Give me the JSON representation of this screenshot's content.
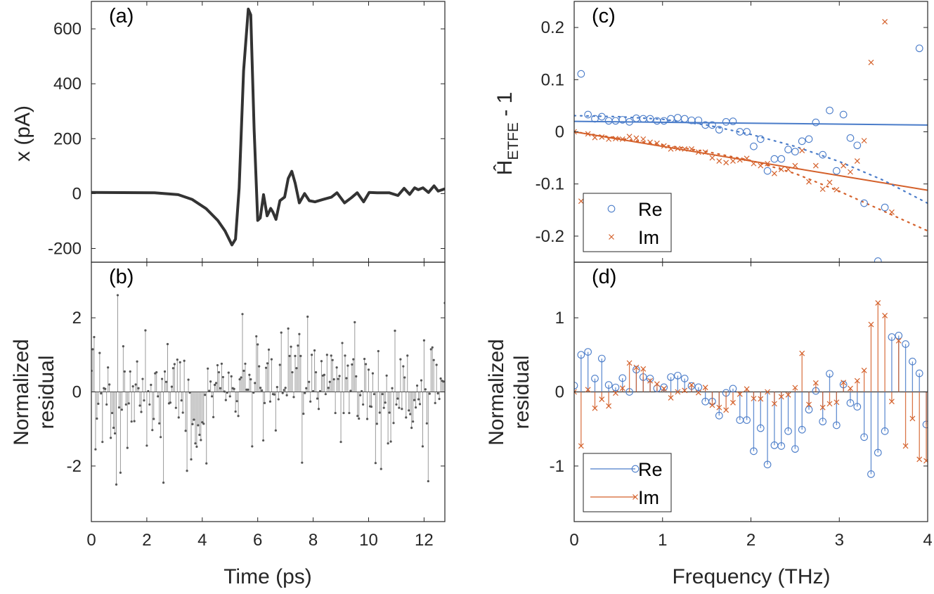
{
  "colors": {
    "re": "#4a7cc9",
    "im": "#d4602a",
    "trace": "#333333",
    "stem": "#9a9a9a",
    "axis": "#262626"
  },
  "chart_data": [
    {
      "panel_label": "(a)",
      "type": "line",
      "ylabel": "x (pA)",
      "xlim": [
        0,
        12.75
      ],
      "ylim": [
        -250,
        700
      ],
      "xticks": [
        0,
        2,
        4,
        6,
        8,
        10,
        12
      ],
      "yticks": [
        -200,
        0,
        200,
        400,
        600
      ],
      "series": [
        {
          "x": [
            0,
            2.28,
            3.13,
            3.63,
            4.14,
            4.56,
            4.82,
            5.07,
            5.2,
            5.33,
            5.49,
            5.66,
            5.75,
            5.87,
            6.0,
            6.09,
            6.21,
            6.34,
            6.47,
            6.55,
            6.66,
            6.8,
            6.97,
            7.1,
            7.23,
            7.35,
            7.5,
            7.69,
            7.86,
            8.07,
            8.37,
            8.66,
            8.86,
            9.13,
            9.38,
            9.59,
            9.82,
            10.02,
            10.31,
            10.74,
            11.06,
            11.28,
            11.48,
            11.66,
            11.79,
            11.96,
            12.16,
            12.36,
            12.51,
            12.75
          ],
          "y": [
            4,
            3,
            -4,
            -21,
            -55,
            -98,
            -136,
            -187,
            -166,
            21,
            447,
            672,
            651,
            234,
            -98,
            -89,
            -4,
            -81,
            -54,
            -68,
            -94,
            -26,
            -13,
            55,
            81,
            38,
            -34,
            0,
            -26,
            -30,
            -21,
            -13,
            3,
            -34,
            -15,
            3,
            -30,
            4,
            3,
            3,
            -7,
            19,
            -3,
            21,
            14,
            21,
            4,
            28,
            9,
            17
          ]
        }
      ]
    },
    {
      "panel_label": "(b)",
      "type": "stem",
      "xlabel": "Time (ps)",
      "ylabel": [
        "Normalized",
        "residual"
      ],
      "xlim": [
        0,
        12.75
      ],
      "ylim": [
        -3.5,
        3.5
      ],
      "xticks": [
        0,
        2,
        4,
        6,
        8,
        10,
        12
      ],
      "yticks": [
        -2,
        0,
        2
      ],
      "values": [
        0.57,
        1.15,
        1.48,
        -1.55,
        -0.72,
        -0.32,
        1.05,
        -0.04,
        -1.35,
        0.1,
        0.08,
        -0.34,
        0.66,
        0.2,
        -1.24,
        -0.57,
        -0.97,
        -1.12,
        -2.5,
        2.61,
        -0.42,
        -2.18,
        -0.48,
        1.23,
        0.55,
        -0.34,
        -1.51,
        -0.31,
        0.55,
        -0.8,
        0.15,
        -0.79,
        0.2,
        0.82,
        0.1,
        -0.37,
        -0.54,
        0.35,
        -0.23,
        1.66,
        -1.45,
        0.02,
        -0.34,
        0.19,
        -1.03,
        -0.73,
        0.5,
        0.53,
        -0.12,
        -0.85,
        -1.22,
        0.35,
        -2.45,
        0.55,
        0.27,
        1.29,
        -0.31,
        -0.29,
        0.14,
        0.64,
        0.75,
        -0.43,
        0.87,
        -0.69,
        0.8,
        -0.23,
        -0.56,
        0.84,
        -1.05,
        -2.13,
        0.33,
        -0.02,
        -1.82,
        -0.87,
        -0.75,
        -1.39,
        -1.48,
        -0.9,
        -1.16,
        -1.3,
        -0.82,
        -0.86,
        -0.08,
        -1.93,
        0.63,
        0.03,
        0.28,
        -0.12,
        -0.68,
        0.19,
        0.24,
        0.72,
        0.53,
        0.1,
        0.76,
        0.4,
        0.01,
        -0.22,
        -0.02,
        0.52,
        -0.12,
        0.42,
        0.1,
        0.08,
        -0.53,
        -0.25,
        -0.65,
        0.34,
        0.39,
        2.1,
        0.57,
        0.76,
        0.06,
        0.06,
        0.46,
        0.34,
        -1.47,
        -0.02,
        0.24,
        1.5,
        1.28,
        0.69,
        0.11,
        0.04,
        -1.31,
        -0.3,
        0.65,
        0.77,
        1.14,
        -0.26,
        0.88,
        -0.06,
        -0.07,
        -1.04,
        0.13,
        -0.2,
        0.73,
        1.6,
        -0.03,
        0.05,
        0.11,
        -0.09,
        1.71,
        0.97,
        1.22,
        0.53,
        -0.14,
        0.97,
        0.64,
        1.25,
        1.56,
        0.97,
        -1.91,
        -0.59,
        -0.03,
        0.1,
        2.03,
        0.27,
        -0.26,
        1.0,
        0.02,
        1.12,
        0.53,
        -0.18,
        -0.46,
        0.02,
        0.83,
        0.44,
        0.46,
        -0.06,
        1.0,
        0.11,
        0.27,
        0.98,
        0.86,
        0.34,
        -0.57,
        0.66,
        0.35,
        0.43,
        -1.35,
        1.32,
        -0.57,
        0.98,
        0.37,
        0.71,
        -0.57,
        0.03,
        0.74,
        0.88,
        1.88,
        0.42,
        -0.65,
        -0.72,
        -0.09,
        0.02,
        -0.34,
        0.89,
        0.75,
        -0.73,
        0.6,
        -0.39,
        -0.4,
        0.5,
        -0.06,
        -1.92,
        -0.86,
        1.1,
        -0.56,
        -2.08,
        -0.06,
        -0.43,
        -0.29,
        0.44,
        -1.39,
        -0.56,
        -1.34,
        0.1,
        -0.84,
        1.65,
        -0.34,
        -0.18,
        -0.43,
        0.88,
        -0.46,
        0.69,
        0.39,
        -0.69,
        0.98,
        -0.5,
        -0.6,
        -0.97,
        -0.8,
        -0.22,
        -0.42,
        0.17,
        -0.2,
        -0.33,
        0.31,
        -1.47,
        1.39,
        0.07,
        -0.85,
        -2.41,
        -0.05,
        1.15,
        1.2,
        0.86,
        -0.3,
        0.73,
        -0.04,
        -0.19,
        0.36,
        0.3,
        0.28,
        2.4
      ]
    },
    {
      "panel_label": "(c)",
      "type": "scatter",
      "ylabel": {
        "main": "Ĥ",
        "sub": "ETFE",
        "suffix": " - 1"
      },
      "xlim": [
        0,
        4
      ],
      "ylim": [
        -0.25,
        0.25
      ],
      "xticks": [
        0,
        1,
        2,
        3,
        4
      ],
      "yticks": [
        -0.2,
        -0.1,
        0,
        0.1,
        0.2
      ],
      "legend": {
        "placement": "bottom-left",
        "entries": [
          "Re",
          "Im"
        ]
      },
      "series": [
        {
          "name": "Re",
          "marker": "circle",
          "color_key": "re",
          "values": [
            null,
            0.111,
            0.033,
            0.025,
            0.029,
            0.021,
            0.021,
            0.023,
            0.019,
            0.026,
            0.025,
            0.025,
            0.021,
            0.021,
            0.025,
            0.027,
            0.025,
            0.022,
            0.022,
            0.013,
            0.013,
            0.004,
            0.019,
            0.02,
            0.0,
            0.0,
            -0.028,
            -0.014,
            -0.075,
            -0.052,
            -0.052,
            -0.034,
            -0.038,
            -0.018,
            -0.014,
            0.018,
            -0.044,
            0.041,
            -0.075,
            0.033,
            -0.012,
            -0.026,
            -0.137,
            null,
            -0.248,
            -0.145,
            null,
            null,
            null,
            null,
            0.16,
            null
          ]
        },
        {
          "name": "Im",
          "marker": "cross",
          "color_key": "im",
          "values": [
            0.0,
            -0.133,
            -0.004,
            -0.011,
            -0.01,
            -0.014,
            -0.013,
            -0.014,
            -0.009,
            -0.012,
            -0.014,
            -0.02,
            -0.022,
            -0.027,
            -0.033,
            -0.032,
            -0.033,
            -0.033,
            -0.039,
            -0.039,
            -0.05,
            -0.056,
            -0.059,
            -0.056,
            -0.054,
            -0.051,
            -0.061,
            -0.065,
            -0.061,
            -0.08,
            -0.072,
            -0.072,
            -0.065,
            -0.036,
            -0.096,
            -0.065,
            -0.11,
            -0.097,
            -0.111,
            -0.065,
            -0.077,
            -0.056,
            -0.017,
            0.133,
            null,
            0.211,
            -0.154,
            null,
            null,
            null,
            null,
            null
          ]
        }
      ],
      "fits": [
        {
          "style": "solid",
          "color_key": "re",
          "x": [
            0,
            4
          ],
          "y": [
            0.02,
            0.013
          ]
        },
        {
          "style": "solid",
          "color_key": "im",
          "x": [
            0,
            4
          ],
          "y": [
            0.0,
            -0.112
          ]
        },
        {
          "style": "dotted",
          "color_key": "re",
          "x": [
            0,
            0.5,
            1,
            1.5,
            2,
            2.5,
            3,
            3.5,
            4
          ],
          "y": [
            0.031,
            0.029,
            0.024,
            0.013,
            -0.005,
            -0.028,
            -0.057,
            -0.093,
            -0.137
          ]
        },
        {
          "style": "dotted",
          "color_key": "im",
          "x": [
            0,
            0.5,
            1,
            1.5,
            2,
            2.5,
            3,
            3.5,
            4
          ],
          "y": [
            0,
            -0.012,
            -0.025,
            -0.038,
            -0.055,
            -0.08,
            -0.114,
            -0.152,
            -0.19
          ]
        }
      ]
    },
    {
      "panel_label": "(d)",
      "type": "stem",
      "xlabel": "Frequency (THz)",
      "ylabel": [
        "Normalized",
        "residual"
      ],
      "xlim": [
        0,
        4
      ],
      "ylim": [
        -1.75,
        1.75
      ],
      "xticks": [
        0,
        1,
        2,
        3,
        4
      ],
      "yticks": [
        -1,
        0,
        1
      ],
      "legend": {
        "placement": "bottom-left",
        "entries": [
          "Re",
          "Im"
        ]
      },
      "series": [
        {
          "name": "Re",
          "marker": "circle",
          "color_key": "re",
          "values": [
            0.085,
            0.5,
            0.54,
            0.18,
            0.45,
            0.094,
            0.06,
            0.186,
            0.0,
            0.3,
            0.2,
            0.18,
            0.047,
            0.063,
            0.2,
            0.22,
            0.18,
            0.08,
            0.063,
            -0.13,
            -0.13,
            -0.32,
            -0.013,
            0.044,
            -0.38,
            -0.38,
            -0.8,
            -0.49,
            -0.98,
            -0.72,
            -0.73,
            -0.53,
            -0.77,
            -0.51,
            -0.24,
            0.013,
            -0.4,
            0.245,
            -0.45,
            0.1,
            -0.15,
            -0.2,
            -0.61,
            -1.11,
            -0.82,
            -0.53,
            0.74,
            0.76,
            0.645,
            0.41,
            0.25,
            -0.44
          ]
        },
        {
          "name": "Im",
          "marker": "cross",
          "color_key": "im",
          "values": [
            0.0,
            -0.73,
            0.03,
            -0.22,
            -0.1,
            -0.19,
            -0.016,
            0.05,
            0.39,
            0.33,
            0.31,
            0.15,
            0.107,
            0.044,
            -0.08,
            0.0,
            0.02,
            0.094,
            -0.01,
            0.06,
            -0.18,
            -0.21,
            -0.245,
            -0.145,
            -0.03,
            0.04,
            -0.09,
            -0.094,
            0.0,
            -0.16,
            -0.066,
            -0.04,
            0.057,
            0.52,
            -0.17,
            0.12,
            -0.21,
            -0.16,
            -0.14,
            0.126,
            0.047,
            0.15,
            0.29,
            0.91,
            1.2,
            1.03,
            -0.13,
            0.69,
            -0.73,
            -0.36,
            -0.91,
            -0.93
          ]
        }
      ]
    }
  ]
}
